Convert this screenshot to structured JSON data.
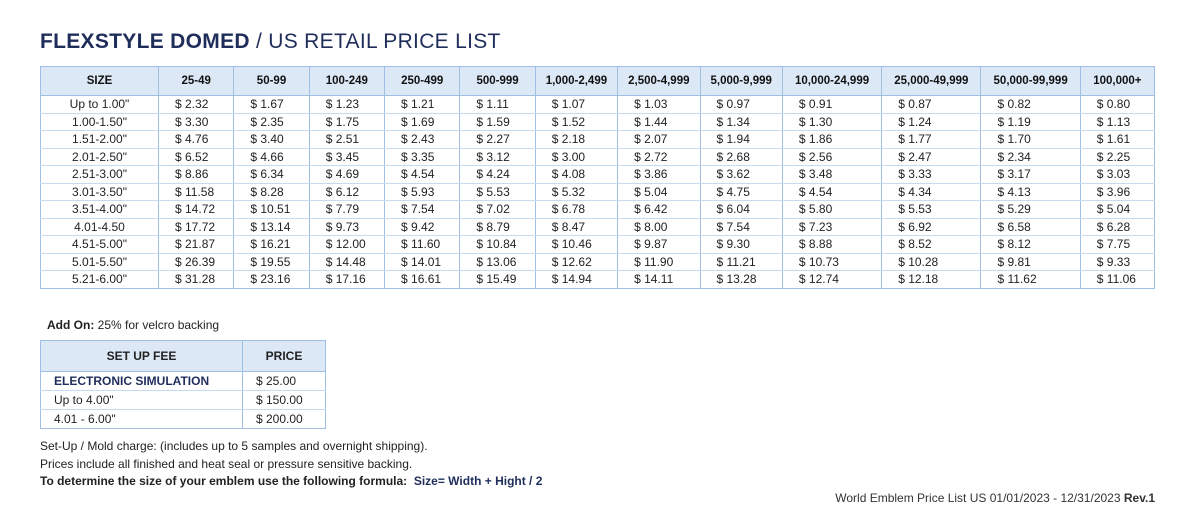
{
  "title": {
    "bold": "FLEXSTYLE DOMED",
    "separator": " / ",
    "rest": "US RETAIL PRICE LIST"
  },
  "price_table": {
    "headers": [
      "SIZE",
      "25-49",
      "50-99",
      "100-249",
      "250-499",
      "500-999",
      "1,000-2,499",
      "2,500-4,999",
      "5,000-9,999",
      "10,000-24,999",
      "25,000-49,999",
      "50,000-99,999",
      "100,000+"
    ],
    "rows": [
      [
        "Up to 1.00\"",
        "$ 2.32",
        "$ 1.67",
        "$ 1.23",
        "$ 1.21",
        "$ 1.11",
        "$ 1.07",
        "$ 1.03",
        "$ 0.97",
        "$ 0.91",
        "$ 0.87",
        "$ 0.82",
        "$ 0.80"
      ],
      [
        "1.00-1.50\"",
        "$ 3.30",
        "$ 2.35",
        "$ 1.75",
        "$ 1.69",
        "$ 1.59",
        "$ 1.52",
        "$ 1.44",
        "$ 1.34",
        "$ 1.30",
        "$ 1.24",
        "$ 1.19",
        "$ 1.13"
      ],
      [
        "1.51-2.00\"",
        "$ 4.76",
        "$ 3.40",
        "$ 2.51",
        "$ 2.43",
        "$ 2.27",
        "$ 2.18",
        "$ 2.07",
        "$ 1.94",
        "$ 1.86",
        "$ 1.77",
        "$ 1.70",
        "$ 1.61"
      ],
      [
        "2.01-2.50\"",
        "$ 6.52",
        "$ 4.66",
        "$ 3.45",
        "$ 3.35",
        "$ 3.12",
        "$ 3.00",
        "$ 2.72",
        "$ 2.68",
        "$ 2.56",
        "$ 2.47",
        "$ 2.34",
        "$ 2.25"
      ],
      [
        "2.51-3.00\"",
        "$ 8.86",
        "$ 6.34",
        "$ 4.69",
        "$ 4.54",
        "$ 4.24",
        "$ 4.08",
        "$ 3.86",
        "$ 3.62",
        "$ 3.48",
        "$ 3.33",
        "$ 3.17",
        "$ 3.03"
      ],
      [
        "3.01-3.50\"",
        "$ 11.58",
        "$ 8.28",
        "$ 6.12",
        "$ 5.93",
        "$ 5.53",
        "$ 5.32",
        "$ 5.04",
        "$ 4.75",
        "$ 4.54",
        "$ 4.34",
        "$ 4.13",
        "$ 3.96"
      ],
      [
        "3.51-4.00\"",
        "$ 14.72",
        "$ 10.51",
        "$ 7.79",
        "$ 7.54",
        "$ 7.02",
        "$ 6.78",
        "$ 6.42",
        "$ 6.04",
        "$ 5.80",
        "$ 5.53",
        "$ 5.29",
        "$ 5.04"
      ],
      [
        "4.01-4.50",
        "$ 17.72",
        "$ 13.14",
        "$ 9.73",
        "$ 9.42",
        "$ 8.79",
        "$ 8.47",
        "$ 8.00",
        "$ 7.54",
        "$ 7.23",
        "$ 6.92",
        "$ 6.58",
        "$ 6.28"
      ],
      [
        "4.51-5.00\"",
        "$ 21.87",
        "$ 16.21",
        "$ 12.00",
        "$ 11.60",
        "$ 10.84",
        "$ 10.46",
        "$ 9.87",
        "$ 9.30",
        "$ 8.88",
        "$ 8.52",
        "$ 8.12",
        "$ 7.75"
      ],
      [
        "5.01-5.50\"",
        "$ 26.39",
        "$ 19.55",
        "$ 14.48",
        "$ 14.01",
        "$ 13.06",
        "$ 12.62",
        "$ 11.90",
        "$ 11.21",
        "$ 10.73",
        "$ 10.28",
        "$ 9.81",
        "$ 9.33"
      ],
      [
        "5.21-6.00\"",
        "$ 31.28",
        "$ 23.16",
        "$ 17.16",
        "$ 16.61",
        "$ 15.49",
        "$ 14.94",
        "$ 14.11",
        "$ 13.28",
        "$ 12.74",
        "$ 12.18",
        "$ 11.62",
        "$ 11.06"
      ]
    ]
  },
  "addon": {
    "label": "Add On:",
    "text": " 25% for velcro backing"
  },
  "setup_table": {
    "headers": [
      "SET UP FEE",
      "PRICE"
    ],
    "rows": [
      [
        "ELECTRONIC SIMULATION",
        "$ 25.00"
      ],
      [
        "Up to 4.00\"",
        "$ 150.00"
      ],
      [
        "4.01 - 6.00\"",
        "$ 200.00"
      ]
    ]
  },
  "notes": {
    "line1": "Set-Up / Mold charge: (includes up to 5 samples and overnight shipping).",
    "line2": "Prices include all finished and heat seal or pressure sensitive backing.",
    "line3_label": "To determine the size of your emblem use the following formula:",
    "line3_formula": "Size= Width + Hight  / 2"
  },
  "footer": {
    "text": "World Emblem Price List US 01/01/2023 - 12/31/2023 ",
    "rev": "Rev.1"
  },
  "colors": {
    "title": "#1f2d5a",
    "header_bg": "#dce8f6",
    "border": "#9fc0e4"
  }
}
